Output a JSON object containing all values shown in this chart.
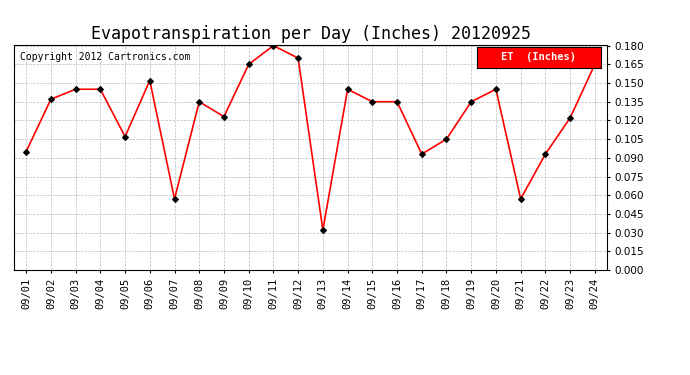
{
  "title": "Evapotranspiration per Day (Inches) 20120925",
  "copyright": "Copyright 2012 Cartronics.com",
  "legend_label": "ET  (Inches)",
  "dates": [
    "09/01",
    "09/02",
    "09/03",
    "09/04",
    "09/05",
    "09/06",
    "09/07",
    "09/08",
    "09/09",
    "09/10",
    "09/11",
    "09/12",
    "09/13",
    "09/14",
    "09/15",
    "09/16",
    "09/17",
    "09/18",
    "09/19",
    "09/20",
    "09/21",
    "09/22",
    "09/23",
    "09/24"
  ],
  "values": [
    0.095,
    0.137,
    0.145,
    0.145,
    0.107,
    0.152,
    0.057,
    0.135,
    0.123,
    0.165,
    0.18,
    0.17,
    0.032,
    0.145,
    0.135,
    0.135,
    0.093,
    0.105,
    0.135,
    0.145,
    0.057,
    0.093,
    0.122,
    0.165
  ],
  "ylim": [
    0.0,
    0.18
  ],
  "ytick_step": 0.015,
  "line_color": "red",
  "marker_color": "black",
  "bg_color": "#ffffff",
  "grid_color": "#bbbbbb",
  "title_fontsize": 12,
  "copyright_fontsize": 7,
  "tick_fontsize": 7.5,
  "legend_bg": "red",
  "legend_fg": "white"
}
